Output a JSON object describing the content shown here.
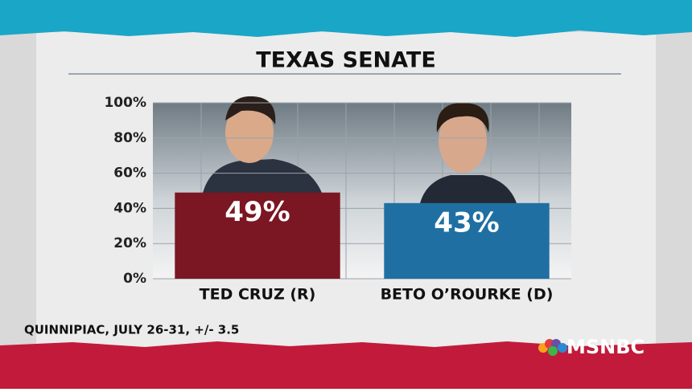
{
  "chart_data": {
    "type": "bar",
    "title": "TEXAS SENATE",
    "categories": [
      "TED CRUZ (R)",
      "BETO O’ROURKE (D)"
    ],
    "values": [
      49,
      43
    ],
    "value_labels": [
      "49%",
      "43%"
    ],
    "colors": [
      "#7b1722",
      "#1f6fa3"
    ],
    "ylim": [
      0,
      100
    ],
    "yticks": [
      {
        "value": 0,
        "label": "0%"
      },
      {
        "value": 20,
        "label": "20%"
      },
      {
        "value": 40,
        "label": "40%"
      },
      {
        "value": 60,
        "label": "60%"
      },
      {
        "value": 80,
        "label": "80%"
      },
      {
        "value": 100,
        "label": "100%"
      }
    ],
    "grid": true,
    "source": "QUINNIPIAC, JULY 26-31, +/- 3.5",
    "network": "MSNBC"
  }
}
